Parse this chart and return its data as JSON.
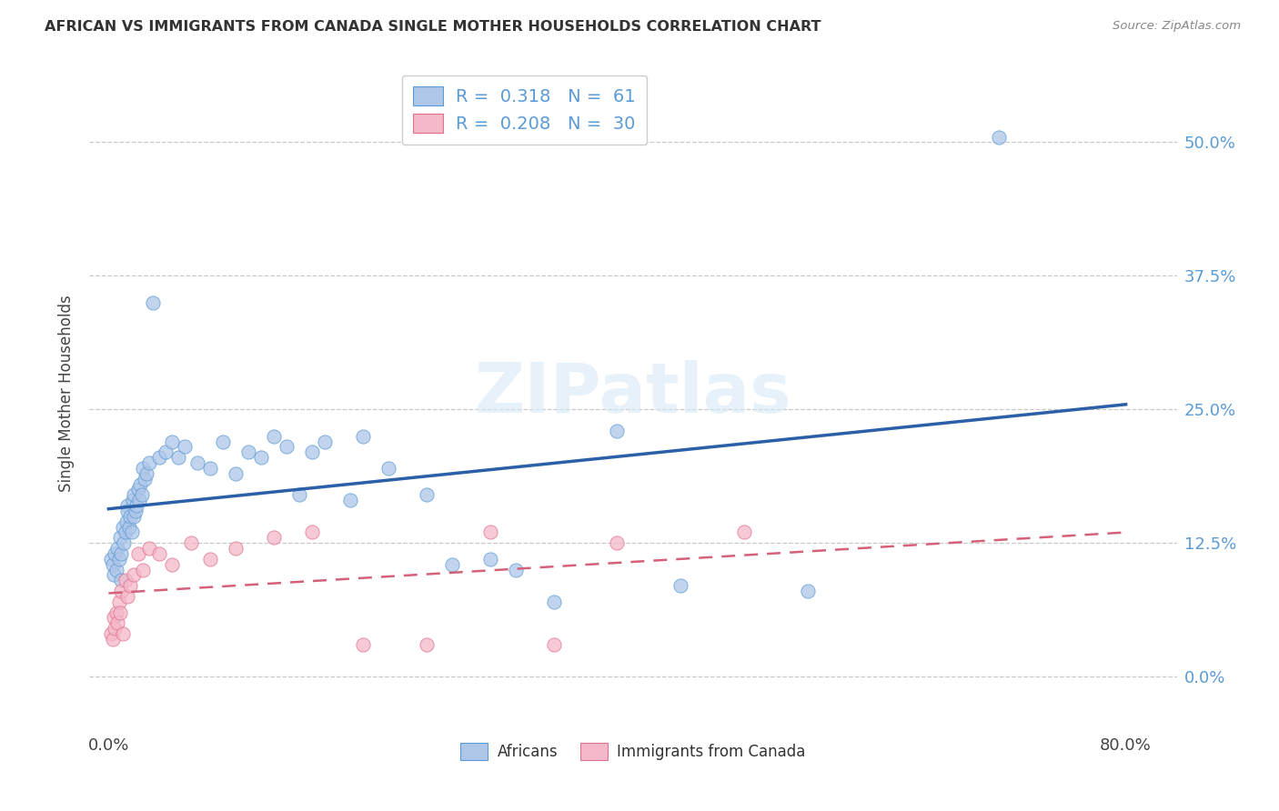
{
  "title": "AFRICAN VS IMMIGRANTS FROM CANADA SINGLE MOTHER HOUSEHOLDS CORRELATION CHART",
  "source": "Source: ZipAtlas.com",
  "ylabel": "Single Mother Households",
  "legend_african_R": "0.318",
  "legend_african_N": "61",
  "legend_canada_R": "0.208",
  "legend_canada_N": "30",
  "african_face_color": "#aec6e8",
  "african_edge_color": "#5b9bd5",
  "canada_face_color": "#f4b8c8",
  "canada_edge_color": "#e07090",
  "african_line_color": "#2b5fa8",
  "canada_line_color": "#d4607a",
  "background_color": "#ffffff",
  "grid_color": "#c8c8c8",
  "ytick_vals": [
    0.0,
    12.5,
    25.0,
    37.5,
    50.0
  ],
  "ytick_labels": [
    "0.0%",
    "12.5%",
    "25.0%",
    "37.5%",
    "50.0%"
  ],
  "xlim": [
    -1.5,
    84
  ],
  "ylim": [
    -5,
    58
  ],
  "africans_x": [
    0.2,
    0.3,
    0.4,
    0.5,
    0.6,
    0.7,
    0.8,
    0.9,
    1.0,
    1.0,
    1.1,
    1.2,
    1.3,
    1.4,
    1.5,
    1.5,
    1.6,
    1.7,
    1.8,
    1.9,
    2.0,
    2.0,
    2.1,
    2.2,
    2.3,
    2.4,
    2.5,
    2.6,
    2.7,
    2.8,
    3.0,
    3.2,
    3.5,
    4.0,
    4.5,
    5.0,
    5.5,
    6.0,
    7.0,
    8.0,
    9.0,
    10.0,
    11.0,
    12.0,
    13.0,
    14.0,
    15.0,
    16.0,
    17.0,
    19.0,
    20.0,
    22.0,
    25.0,
    27.0,
    30.0,
    32.0,
    35.0,
    40.0,
    45.0,
    55.0,
    70.0
  ],
  "africans_y": [
    11.0,
    10.5,
    9.5,
    11.5,
    10.0,
    12.0,
    11.0,
    13.0,
    11.5,
    9.0,
    14.0,
    12.5,
    13.5,
    14.5,
    16.0,
    15.5,
    14.0,
    15.0,
    13.5,
    16.5,
    15.0,
    17.0,
    15.5,
    16.0,
    17.5,
    16.5,
    18.0,
    17.0,
    19.5,
    18.5,
    19.0,
    20.0,
    35.0,
    20.5,
    21.0,
    22.0,
    20.5,
    21.5,
    20.0,
    19.5,
    22.0,
    19.0,
    21.0,
    20.5,
    22.5,
    21.5,
    17.0,
    21.0,
    22.0,
    16.5,
    22.5,
    19.5,
    17.0,
    10.5,
    11.0,
    10.0,
    7.0,
    23.0,
    8.5,
    8.0,
    50.5
  ],
  "canada_x": [
    0.2,
    0.3,
    0.4,
    0.5,
    0.6,
    0.7,
    0.8,
    0.9,
    1.0,
    1.1,
    1.3,
    1.5,
    1.7,
    2.0,
    2.3,
    2.7,
    3.2,
    4.0,
    5.0,
    6.5,
    8.0,
    10.0,
    13.0,
    16.0,
    20.0,
    25.0,
    30.0,
    35.0,
    40.0,
    50.0
  ],
  "canada_y": [
    4.0,
    3.5,
    5.5,
    4.5,
    6.0,
    5.0,
    7.0,
    6.0,
    8.0,
    4.0,
    9.0,
    7.5,
    8.5,
    9.5,
    11.5,
    10.0,
    12.0,
    11.5,
    10.5,
    12.5,
    11.0,
    12.0,
    13.0,
    13.5,
    3.0,
    3.0,
    13.5,
    3.0,
    12.5,
    13.5
  ]
}
